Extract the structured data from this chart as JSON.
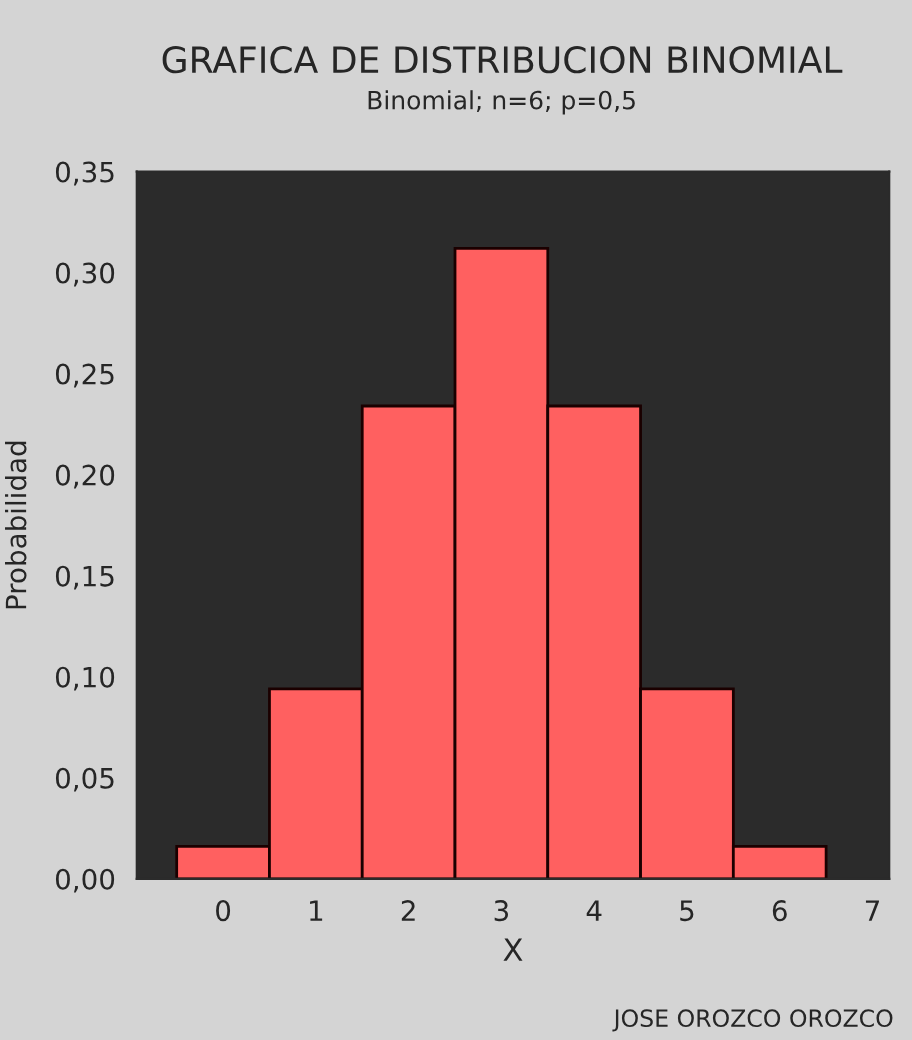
{
  "chart_data": {
    "type": "histogram",
    "title": "GRAFICA DE DISTRIBUCION BINOMIAL",
    "subtitle": "Binomial; n=6; p=0,5",
    "xlabel": "X",
    "ylabel": "Probabilidad",
    "bins": [
      -0.5,
      0.5,
      1.5,
      2.5,
      3.5,
      4.5,
      5.5,
      6.5
    ],
    "values": [
      0.016,
      0.094,
      0.234,
      0.312,
      0.234,
      0.094,
      0.016
    ],
    "color": "#ff6060",
    "xlim": [
      -0.93,
      7.18
    ],
    "xticks": [
      0,
      1,
      2,
      3,
      4,
      5,
      6,
      7
    ],
    "ylim": [
      0,
      0.35
    ],
    "yticks": [
      {
        "value": 0,
        "label": "0,00"
      },
      {
        "value": 0.05,
        "label": "0,05"
      },
      {
        "value": 0.1,
        "label": "0,10"
      },
      {
        "value": 0.15,
        "label": "0,15"
      },
      {
        "value": 0.2,
        "label": "0,20"
      },
      {
        "value": 0.25,
        "label": "0,25"
      },
      {
        "value": 0.3,
        "label": "0,30"
      },
      {
        "value": 0.35,
        "label": "0,35"
      }
    ],
    "grid": false,
    "legend": false,
    "annotations": [
      "JOSE OROZCO OROZCO"
    ]
  }
}
